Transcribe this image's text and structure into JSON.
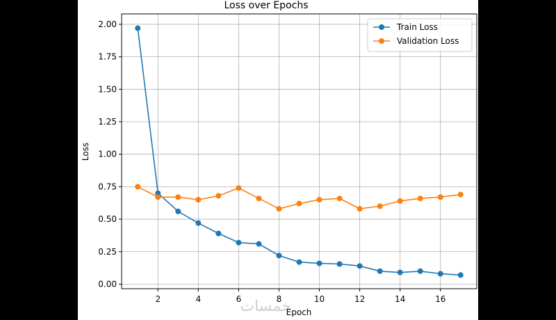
{
  "chart_data": {
    "type": "line",
    "title": "Loss over Epochs",
    "xlabel": "Epoch",
    "ylabel": "Loss",
    "x": [
      1,
      2,
      3,
      4,
      5,
      6,
      7,
      8,
      9,
      10,
      11,
      12,
      13,
      14,
      15,
      16,
      17
    ],
    "xlim": [
      0.2,
      17.8
    ],
    "ylim": [
      -0.035,
      2.08
    ],
    "xticks": [
      2,
      4,
      6,
      8,
      10,
      12,
      14,
      16
    ],
    "xtick_labels": [
      "2",
      "4",
      "6",
      "8",
      "10",
      "12",
      "14",
      "16"
    ],
    "yticks": [
      0.0,
      0.25,
      0.5,
      0.75,
      1.0,
      1.25,
      1.5,
      1.75,
      2.0
    ],
    "ytick_labels": [
      "0.00",
      "0.25",
      "0.50",
      "0.75",
      "1.00",
      "1.25",
      "1.50",
      "1.75",
      "2.00"
    ],
    "grid": true,
    "legend_position": "top-right",
    "series": [
      {
        "name": "Train Loss",
        "color": "#1f77b4",
        "marker": "circle",
        "values": [
          1.97,
          0.7,
          0.56,
          0.47,
          0.39,
          0.32,
          0.31,
          0.22,
          0.17,
          0.16,
          0.155,
          0.14,
          0.1,
          0.09,
          0.1,
          0.08,
          0.07
        ]
      },
      {
        "name": "Validation Loss",
        "color": "#ff7f0e",
        "marker": "circle",
        "values": [
          0.75,
          0.67,
          0.67,
          0.65,
          0.68,
          0.74,
          0.66,
          0.58,
          0.62,
          0.65,
          0.66,
          0.58,
          0.6,
          0.64,
          0.66,
          0.67,
          0.69
        ]
      }
    ]
  },
  "watermark": "خمسات"
}
